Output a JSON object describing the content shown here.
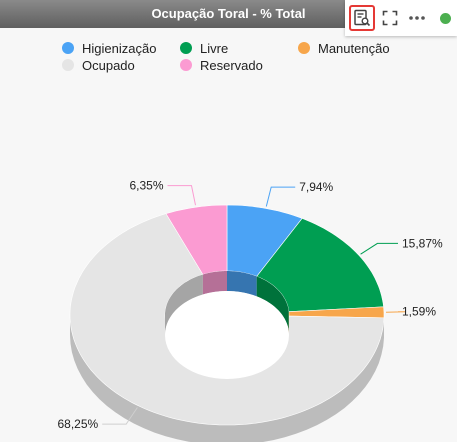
{
  "header": {
    "title": "Ocupação Toral - % Total"
  },
  "toolbar": {
    "buttons": [
      {
        "icon": "table-view-icon",
        "active": true,
        "accent": "#e53935"
      },
      {
        "icon": "fullscreen-icon"
      },
      {
        "icon": "more-options-icon"
      }
    ],
    "status_color": "#4caf50"
  },
  "chart_data": {
    "type": "pie",
    "variant": "3d-donut",
    "title": "Ocupação Toral - % Total",
    "legend_placement": "top-left",
    "slices": [
      {
        "name": "Higienização",
        "value": 7.94,
        "label": "7,94%",
        "color": "#4ba3f5"
      },
      {
        "name": "Livre",
        "value": 15.87,
        "label": "15,87%",
        "color": "#009e52"
      },
      {
        "name": "Manutenção",
        "value": 1.59,
        "label": "1,59%",
        "color": "#f7a64b"
      },
      {
        "name": "Ocupado",
        "value": 68.25,
        "label": "68,25%",
        "color": "#e5e5e5"
      },
      {
        "name": "Reservado",
        "value": 6.35,
        "label": "6,35%",
        "color": "#fb9bd2"
      }
    ]
  }
}
